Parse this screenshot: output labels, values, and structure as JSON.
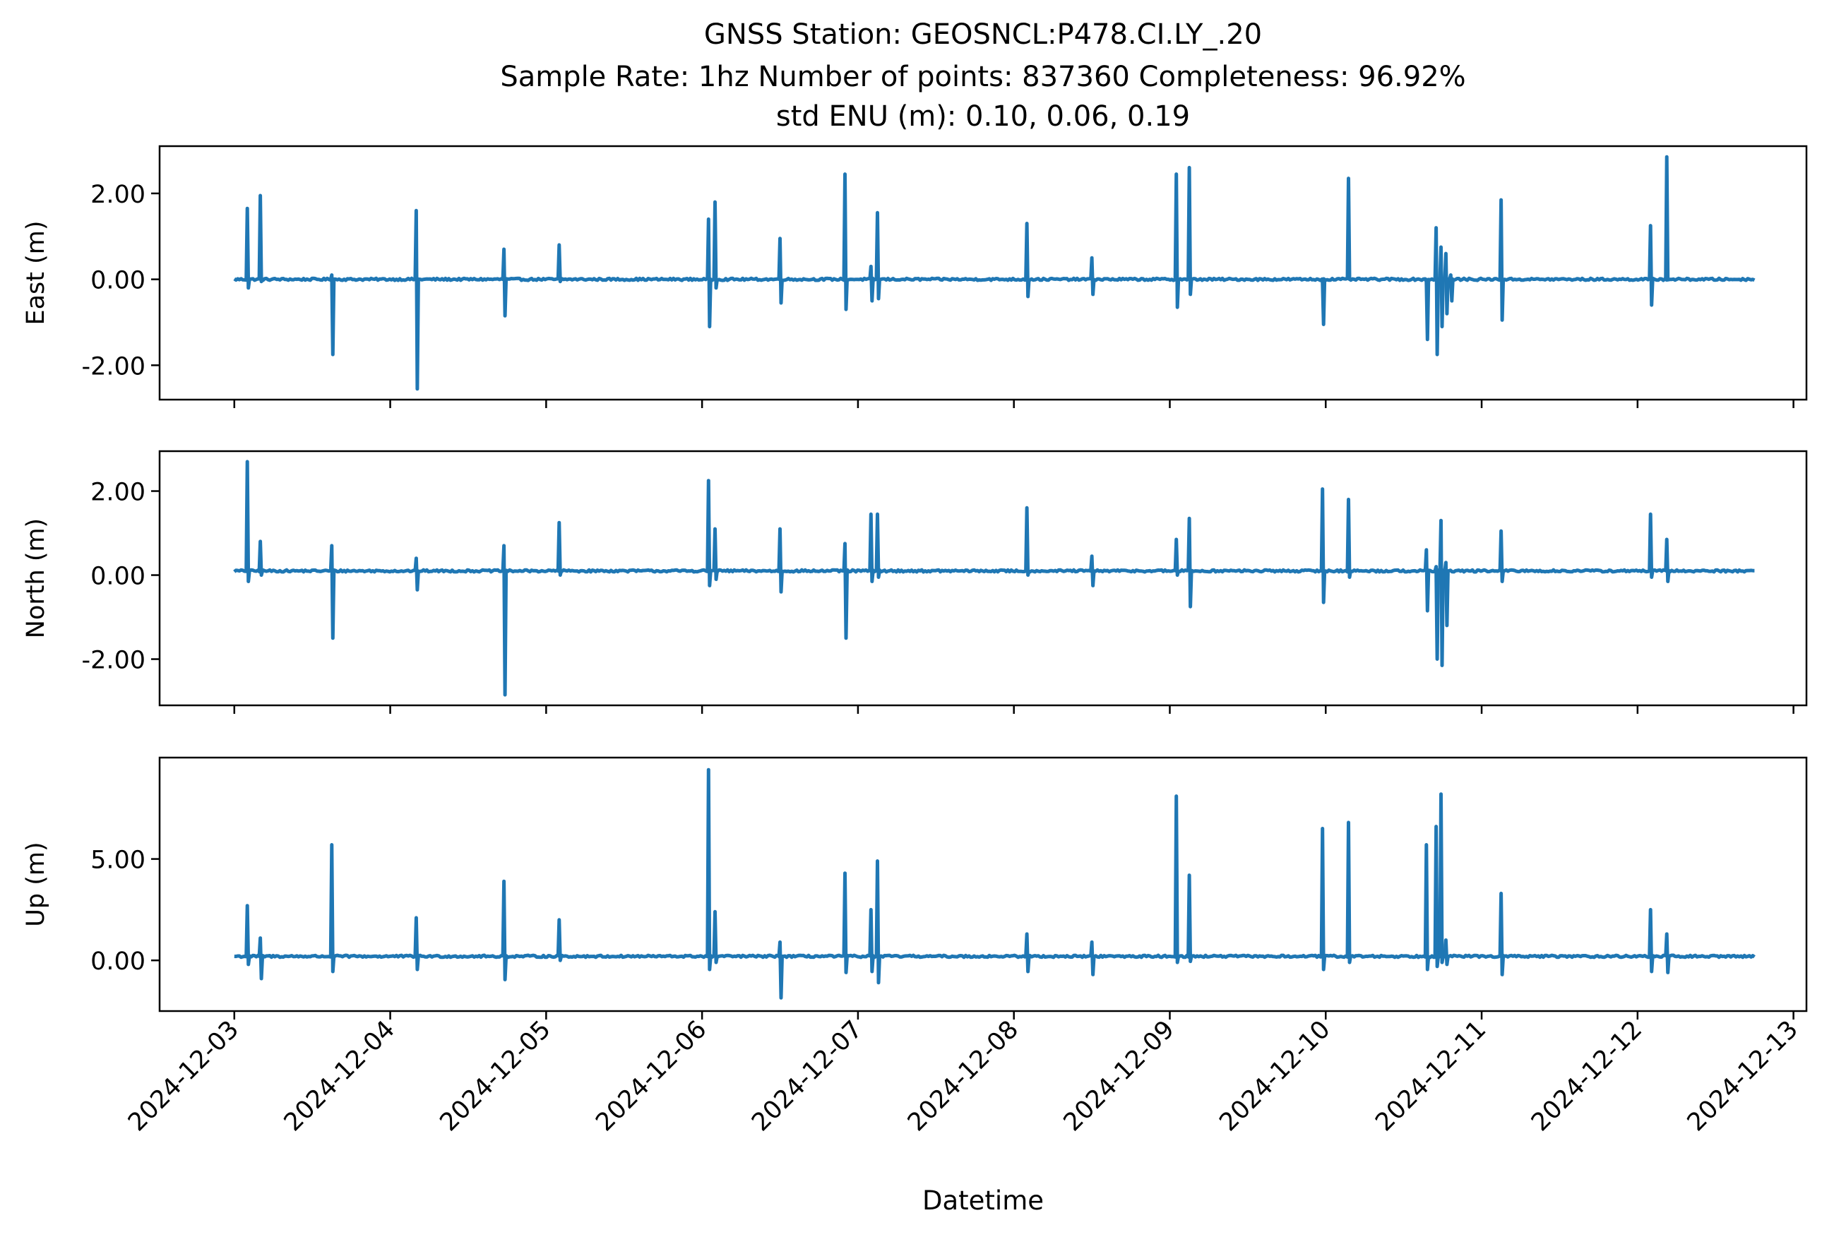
{
  "figure": {
    "title_line1": "GNSS Station: GEOSNCL:P478.CI.LY_.20",
    "title_line2": "Sample Rate: 1hz   Number of points: 837360    Completeness:  96.92%",
    "title_line3": "std ENU (m):  0.10, 0.06, 0.19",
    "xlabel": "Datetime",
    "line_color": "#1f77b4"
  },
  "chart_data": [
    {
      "type": "line",
      "panel": "East",
      "ylabel": "East (m)",
      "xlim": [
        "2024-12-02T12:30",
        "2024-12-13T02:00"
      ],
      "ylim": [
        -2.8,
        3.1
      ],
      "yticks": [
        -2.0,
        0.0,
        2.0
      ],
      "ytick_labels": [
        "-2.00",
        "0.00",
        "2.00"
      ],
      "xticks": [
        "2024-12-03",
        "2024-12-04",
        "2024-12-05",
        "2024-12-06",
        "2024-12-07",
        "2024-12-08",
        "2024-12-09",
        "2024-12-10",
        "2024-12-11",
        "2024-12-12",
        "2024-12-13"
      ],
      "grid": false,
      "baseline": 0.0,
      "x_range": [
        "2024-12-03T00:00",
        "2024-12-12T18:00"
      ],
      "spikes": [
        {
          "x": "2024-12-03T02:00",
          "high": 1.65,
          "low": -0.2
        },
        {
          "x": "2024-12-03T04:00",
          "high": 1.95,
          "low": -0.05
        },
        {
          "x": "2024-12-03T15:00",
          "high": 0.1,
          "low": -1.75
        },
        {
          "x": "2024-12-04T04:00",
          "high": 1.6,
          "low": -2.55
        },
        {
          "x": "2024-12-04T17:30",
          "high": 0.7,
          "low": -0.85
        },
        {
          "x": "2024-12-05T02:00",
          "high": 0.8,
          "low": -0.05
        },
        {
          "x": "2024-12-06T01:00",
          "high": 1.4,
          "low": -1.1
        },
        {
          "x": "2024-12-06T02:00",
          "high": 1.8,
          "low": -0.2
        },
        {
          "x": "2024-12-06T12:00",
          "high": 0.95,
          "low": -0.55
        },
        {
          "x": "2024-12-06T22:00",
          "high": 2.45,
          "low": -0.7
        },
        {
          "x": "2024-12-07T02:00",
          "high": 0.3,
          "low": -0.5
        },
        {
          "x": "2024-12-07T03:00",
          "high": 1.55,
          "low": -0.45
        },
        {
          "x": "2024-12-08T02:00",
          "high": 1.3,
          "low": -0.4
        },
        {
          "x": "2024-12-08T12:00",
          "high": 0.5,
          "low": -0.35
        },
        {
          "x": "2024-12-09T01:00",
          "high": 2.45,
          "low": -0.65
        },
        {
          "x": "2024-12-09T03:00",
          "high": 2.6,
          "low": -0.35
        },
        {
          "x": "2024-12-09T23:30",
          "high": -0.05,
          "low": -1.05
        },
        {
          "x": "2024-12-10T03:30",
          "high": 2.35,
          "low": 0.0
        },
        {
          "x": "2024-12-10T15:30",
          "high": -0.05,
          "low": -1.4
        },
        {
          "x": "2024-12-10T17:00",
          "high": 1.2,
          "low": -1.75
        },
        {
          "x": "2024-12-10T17:45",
          "high": 0.75,
          "low": -1.1
        },
        {
          "x": "2024-12-10T18:30",
          "high": 0.6,
          "low": -0.8
        },
        {
          "x": "2024-12-10T19:15",
          "high": 0.1,
          "low": -0.5
        },
        {
          "x": "2024-12-11T03:00",
          "high": 1.85,
          "low": -0.95
        },
        {
          "x": "2024-12-12T02:00",
          "high": 1.25,
          "low": -0.6
        },
        {
          "x": "2024-12-12T04:30",
          "high": 2.85,
          "low": 0.0
        }
      ]
    },
    {
      "type": "line",
      "panel": "North",
      "ylabel": "North (m)",
      "xlim": [
        "2024-12-02T12:30",
        "2024-12-13T02:00"
      ],
      "ylim": [
        -3.1,
        2.95
      ],
      "yticks": [
        -2.0,
        0.0,
        2.0
      ],
      "ytick_labels": [
        "-2.00",
        "0.00",
        "2.00"
      ],
      "xticks": [
        "2024-12-03",
        "2024-12-04",
        "2024-12-05",
        "2024-12-06",
        "2024-12-07",
        "2024-12-08",
        "2024-12-09",
        "2024-12-10",
        "2024-12-11",
        "2024-12-12",
        "2024-12-13"
      ],
      "grid": false,
      "baseline": 0.1,
      "x_range": [
        "2024-12-03T00:00",
        "2024-12-12T18:00"
      ],
      "spikes": [
        {
          "x": "2024-12-03T02:00",
          "high": 2.7,
          "low": -0.15
        },
        {
          "x": "2024-12-03T04:00",
          "high": 0.8,
          "low": 0.0
        },
        {
          "x": "2024-12-03T15:00",
          "high": 0.7,
          "low": -1.5
        },
        {
          "x": "2024-12-04T04:00",
          "high": 0.4,
          "low": -0.35
        },
        {
          "x": "2024-12-04T17:30",
          "high": 0.7,
          "low": -2.85
        },
        {
          "x": "2024-12-05T02:00",
          "high": 1.25,
          "low": 0.0
        },
        {
          "x": "2024-12-06T01:00",
          "high": 2.25,
          "low": -0.25
        },
        {
          "x": "2024-12-06T02:00",
          "high": 1.1,
          "low": -0.1
        },
        {
          "x": "2024-12-06T12:00",
          "high": 1.1,
          "low": -0.4
        },
        {
          "x": "2024-12-06T22:00",
          "high": 0.75,
          "low": -1.5
        },
        {
          "x": "2024-12-07T02:00",
          "high": 1.45,
          "low": -0.15
        },
        {
          "x": "2024-12-07T03:00",
          "high": 1.45,
          "low": -0.05
        },
        {
          "x": "2024-12-08T02:00",
          "high": 1.6,
          "low": 0.0
        },
        {
          "x": "2024-12-08T12:00",
          "high": 0.45,
          "low": -0.25
        },
        {
          "x": "2024-12-09T01:00",
          "high": 0.85,
          "low": 0.0
        },
        {
          "x": "2024-12-09T03:00",
          "high": 1.35,
          "low": -0.75
        },
        {
          "x": "2024-12-09T23:30",
          "high": 2.05,
          "low": -0.65
        },
        {
          "x": "2024-12-10T03:30",
          "high": 1.8,
          "low": -0.05
        },
        {
          "x": "2024-12-10T15:30",
          "high": 0.6,
          "low": -0.85
        },
        {
          "x": "2024-12-10T17:00",
          "high": 0.2,
          "low": -2.0
        },
        {
          "x": "2024-12-10T17:45",
          "high": 1.3,
          "low": -2.15
        },
        {
          "x": "2024-12-10T18:30",
          "high": 0.3,
          "low": -1.2
        },
        {
          "x": "2024-12-11T03:00",
          "high": 1.05,
          "low": -0.15
        },
        {
          "x": "2024-12-12T02:00",
          "high": 1.45,
          "low": -0.05
        },
        {
          "x": "2024-12-12T04:30",
          "high": 0.85,
          "low": -0.15
        }
      ]
    },
    {
      "type": "line",
      "panel": "Up",
      "ylabel": "Up (m)",
      "xlim": [
        "2024-12-02T12:30",
        "2024-12-13T02:00"
      ],
      "ylim": [
        -2.5,
        10.0
      ],
      "yticks": [
        0.0,
        5.0
      ],
      "ytick_labels": [
        "0.00",
        "5.00"
      ],
      "xticks": [
        "2024-12-03",
        "2024-12-04",
        "2024-12-05",
        "2024-12-06",
        "2024-12-07",
        "2024-12-08",
        "2024-12-09",
        "2024-12-10",
        "2024-12-11",
        "2024-12-12",
        "2024-12-13"
      ],
      "grid": false,
      "baseline": 0.2,
      "x_range": [
        "2024-12-03T00:00",
        "2024-12-12T18:00"
      ],
      "spikes": [
        {
          "x": "2024-12-03T02:00",
          "high": 2.7,
          "low": -0.2
        },
        {
          "x": "2024-12-03T04:00",
          "high": 1.1,
          "low": -0.9
        },
        {
          "x": "2024-12-03T15:00",
          "high": 5.7,
          "low": -0.55
        },
        {
          "x": "2024-12-04T04:00",
          "high": 2.1,
          "low": -0.45
        },
        {
          "x": "2024-12-04T17:30",
          "high": 3.9,
          "low": -0.95
        },
        {
          "x": "2024-12-05T02:00",
          "high": 2.0,
          "low": 0.0
        },
        {
          "x": "2024-12-06T01:00",
          "high": 9.4,
          "low": -0.45
        },
        {
          "x": "2024-12-06T02:00",
          "high": 2.4,
          "low": -0.1
        },
        {
          "x": "2024-12-06T12:00",
          "high": 0.9,
          "low": -1.85
        },
        {
          "x": "2024-12-06T22:00",
          "high": 4.3,
          "low": -0.6
        },
        {
          "x": "2024-12-07T02:00",
          "high": 2.5,
          "low": -0.55
        },
        {
          "x": "2024-12-07T03:00",
          "high": 4.9,
          "low": -1.1
        },
        {
          "x": "2024-12-08T02:00",
          "high": 1.3,
          "low": -0.55
        },
        {
          "x": "2024-12-08T12:00",
          "high": 0.9,
          "low": -0.7
        },
        {
          "x": "2024-12-09T01:00",
          "high": 8.1,
          "low": -0.1
        },
        {
          "x": "2024-12-09T03:00",
          "high": 4.2,
          "low": -0.05
        },
        {
          "x": "2024-12-09T23:30",
          "high": 6.5,
          "low": -0.45
        },
        {
          "x": "2024-12-10T03:30",
          "high": 6.8,
          "low": -0.1
        },
        {
          "x": "2024-12-10T15:30",
          "high": 5.7,
          "low": -0.45
        },
        {
          "x": "2024-12-10T17:00",
          "high": 6.6,
          "low": -0.3
        },
        {
          "x": "2024-12-10T17:45",
          "high": 8.2,
          "low": -0.1
        },
        {
          "x": "2024-12-10T18:30",
          "high": 1.0,
          "low": -0.2
        },
        {
          "x": "2024-12-11T03:00",
          "high": 3.3,
          "low": -0.7
        },
        {
          "x": "2024-12-12T02:00",
          "high": 2.5,
          "low": -0.55
        },
        {
          "x": "2024-12-12T04:30",
          "high": 1.3,
          "low": -0.6
        }
      ]
    }
  ]
}
